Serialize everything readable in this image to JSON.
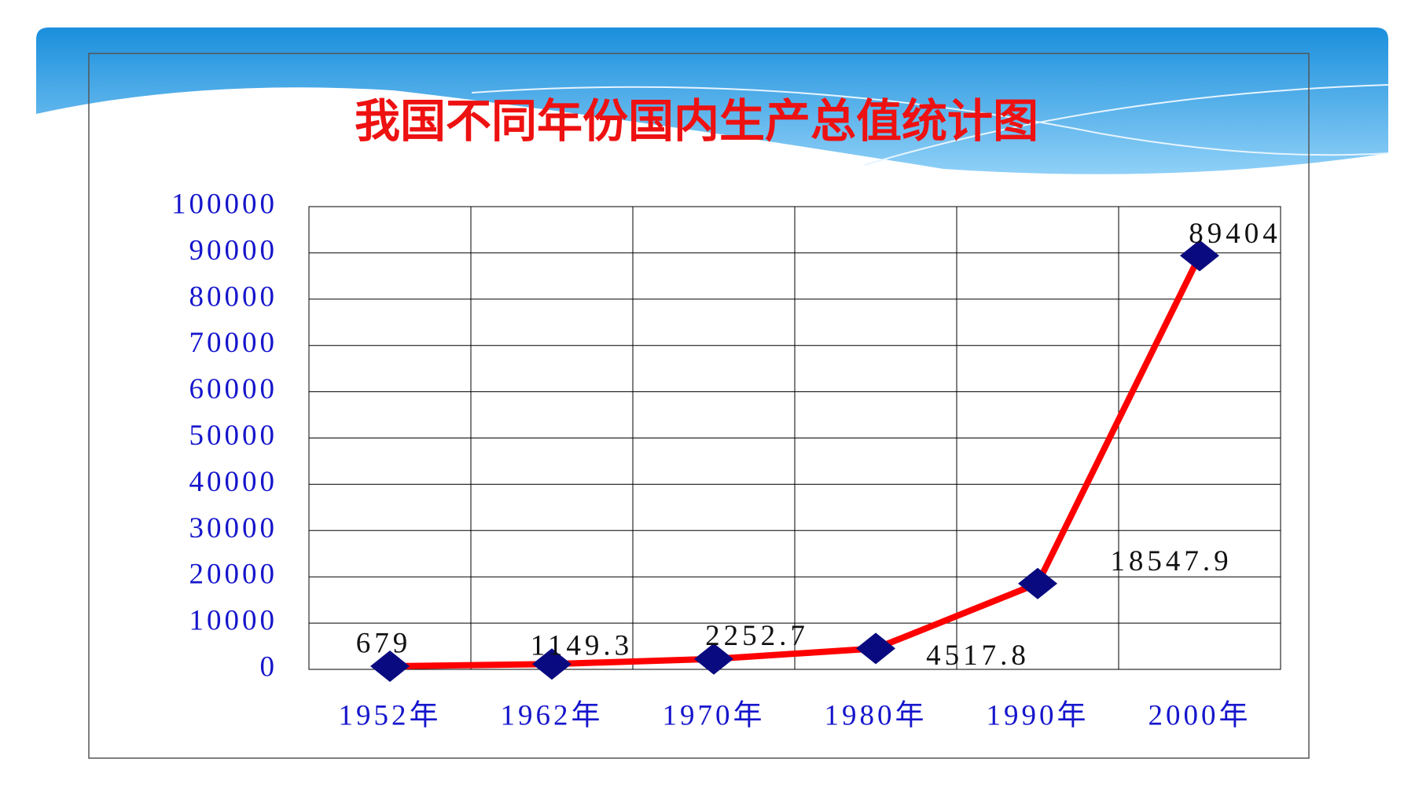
{
  "chart_data": {
    "type": "line",
    "title": "我国不同年份国内生产总值统计图",
    "categories": [
      "1952年",
      "1962年",
      "1970年",
      "1980年",
      "1990年",
      "2000年"
    ],
    "series": [
      {
        "color": "#ff0000",
        "marker_color": "#0a0a80",
        "values": [
          679,
          1149.3,
          2252.7,
          4517.8,
          18547.9,
          89404
        ]
      }
    ],
    "ylim": [
      0,
      100000
    ],
    "yticks": [
      0,
      10000,
      20000,
      30000,
      40000,
      50000,
      60000,
      70000,
      80000,
      90000,
      100000
    ],
    "grid": true
  }
}
